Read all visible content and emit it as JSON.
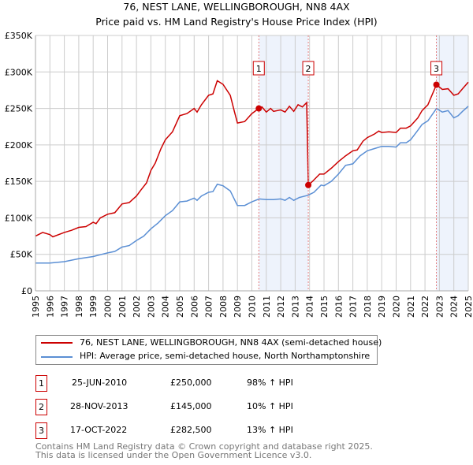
{
  "chart_data": {
    "type": "line",
    "title": "76, NEST LANE, WELLINGBOROUGH, NN8 4AX",
    "subtitle": "Price paid vs. HM Land Registry's House Price Index (HPI)",
    "xlim": [
      1995,
      2025
    ],
    "ylim": [
      0,
      350000
    ],
    "x_ticks": [
      "1995",
      "1996",
      "1997",
      "1998",
      "1999",
      "2000",
      "2001",
      "2002",
      "2003",
      "2004",
      "2005",
      "2006",
      "2007",
      "2008",
      "2009",
      "2010",
      "2011",
      "2012",
      "2013",
      "2014",
      "2015",
      "2016",
      "2017",
      "2018",
      "2019",
      "2020",
      "2021",
      "2022",
      "2023",
      "2024",
      "2025"
    ],
    "y_ticks": [
      {
        "v": 0,
        "label": "£0"
      },
      {
        "v": 50000,
        "label": "£50K"
      },
      {
        "v": 100000,
        "label": "£100K"
      },
      {
        "v": 150000,
        "label": "£150K"
      },
      {
        "v": 200000,
        "label": "£200K"
      },
      {
        "v": 250000,
        "label": "£250K"
      },
      {
        "v": 300000,
        "label": "£300K"
      },
      {
        "v": 350000,
        "label": "£350K"
      }
    ],
    "grid": true,
    "shaded_ranges": [
      [
        2010.48,
        2013.91
      ],
      [
        2022.79,
        2025
      ]
    ],
    "series": [
      {
        "name": "76, NEST LANE, WELLINGBOROUGH, NN8 4AX (semi-detached house)",
        "color": "#cc0000",
        "x": [
          1995,
          1995.5,
          1996,
          1996.2,
          1997,
          1997.5,
          1998,
          1998.5,
          1999,
          1999.2,
          1999.5,
          2000,
          2000.5,
          2001,
          2001.5,
          2002,
          2002.3,
          2002.7,
          2003,
          2003.3,
          2003.7,
          2004,
          2004.5,
          2005,
          2005.5,
          2006,
          2006.2,
          2006.5,
          2007,
          2007.3,
          2007.6,
          2008,
          2008.5,
          2008.8,
          2009,
          2009.5,
          2010,
          2010.48,
          2010.7,
          2011,
          2011.3,
          2011.5,
          2012,
          2012.3,
          2012.6,
          2012.9,
          2013.2,
          2013.5,
          2013.8,
          2013.91,
          2014.2,
          2014.7,
          2015,
          2015.5,
          2016,
          2016.5,
          2017,
          2017.3,
          2017.7,
          2018,
          2018.5,
          2018.8,
          2019,
          2019.5,
          2020,
          2020.3,
          2020.7,
          2021,
          2021.5,
          2021.8,
          2022.2,
          2022.79,
          2023.2,
          2023.6,
          2024,
          2024.3,
          2024.6,
          2025
        ],
        "y": [
          75,
          80,
          77,
          74,
          80,
          83,
          87,
          88,
          94,
          92,
          100,
          105,
          107,
          119,
          121,
          130,
          138,
          148,
          165,
          175,
          195,
          207,
          218,
          240,
          243,
          250,
          245,
          255,
          268,
          270,
          288,
          283,
          268,
          245,
          230,
          232,
          243,
          250,
          252,
          245,
          250,
          246,
          248,
          245,
          253,
          246,
          255,
          252,
          258,
          145,
          150,
          160,
          160,
          168,
          177,
          185,
          192,
          193,
          205,
          210,
          215,
          219,
          217,
          218,
          217,
          223,
          223,
          226,
          237,
          247,
          255,
          282.5,
          276,
          277,
          268,
          270,
          277,
          286
        ],
        "y_unit": "thousands GBP"
      },
      {
        "name": "HPI: Average price, semi-detached house, North Northamptonshire",
        "color": "#5b8fd4",
        "x": [
          1995,
          1996,
          1997,
          1998,
          1999,
          2000,
          2000.5,
          2001,
          2001.5,
          2002,
          2002.5,
          2003,
          2003.5,
          2004,
          2004.5,
          2005,
          2005.5,
          2006,
          2006.2,
          2006.5,
          2007,
          2007.3,
          2007.6,
          2008,
          2008.5,
          2008.8,
          2009,
          2009.5,
          2010,
          2010.5,
          2011,
          2011.5,
          2012,
          2012.3,
          2012.6,
          2012.9,
          2013.3,
          2013.9,
          2014.3,
          2014.8,
          2015,
          2015.5,
          2016,
          2016.5,
          2017,
          2017.5,
          2018,
          2018.5,
          2019,
          2019.5,
          2020,
          2020.3,
          2020.7,
          2021,
          2021.5,
          2021.8,
          2022.2,
          2022.8,
          2023.2,
          2023.6,
          2024,
          2024.3,
          2024.6,
          2025
        ],
        "y": [
          38,
          38,
          40,
          44,
          47,
          52,
          54,
          60,
          62,
          69,
          75,
          85,
          93,
          103,
          110,
          122,
          123,
          127,
          124,
          130,
          135,
          136,
          146,
          144,
          137,
          125,
          117,
          117,
          122,
          126,
          125,
          125,
          126,
          124,
          128,
          124,
          128,
          131,
          135,
          145,
          144,
          150,
          160,
          172,
          174,
          185,
          192,
          195,
          198,
          198,
          197,
          203,
          203,
          207,
          220,
          228,
          233,
          250,
          245,
          247,
          237,
          240,
          246,
          253
        ],
        "y_unit": "thousands GBP"
      }
    ],
    "sales": [
      {
        "label": "1",
        "x": 2010.48,
        "y": 250,
        "date": "25-JUN-2010",
        "price": "£250,000",
        "hpi": "98% ↑ HPI"
      },
      {
        "label": "2",
        "x": 2013.91,
        "y": 145,
        "date": "28-NOV-2013",
        "price": "£145,000",
        "hpi": "10% ↑ HPI"
      },
      {
        "label": "3",
        "x": 2022.79,
        "y": 282.5,
        "date": "17-OCT-2022",
        "price": "£282,500",
        "hpi": "13% ↑ HPI"
      }
    ],
    "legend_placement": "below"
  },
  "footer": [
    "Contains HM Land Registry data © Crown copyright and database right 2025.",
    "This data is licensed under the Open Government Licence v3.0."
  ]
}
